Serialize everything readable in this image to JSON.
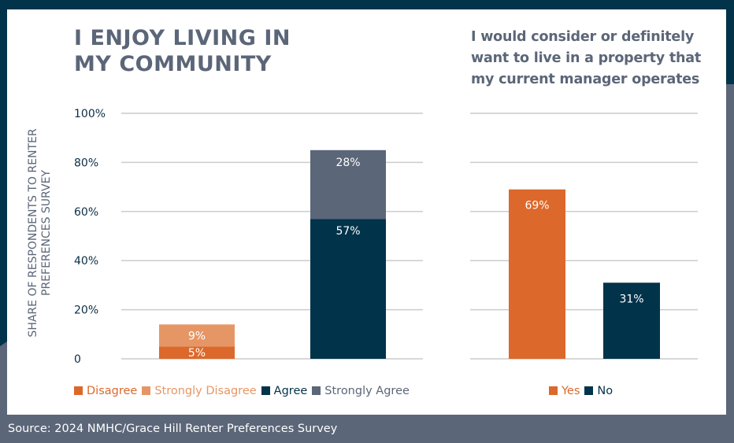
{
  "colors": {
    "navy": "#01334a",
    "slate": "#5b6678",
    "orange": "#dc682b",
    "light_orange": "#e69665",
    "grid": "#cccccc"
  },
  "left": {
    "title": "I ENJOY LIVING IN MY COMMUNITY",
    "title_lines": [
      "I ENJOY LIVING IN",
      "MY COMMUNITY"
    ],
    "ylabel": "SHARE OF RESPONDENTS TO RENTER PREFERENCES SURVEY",
    "legend": [
      {
        "label": "Disagree",
        "color": "#dc682b"
      },
      {
        "label": "Strongly Disagree",
        "color": "#e69665"
      },
      {
        "label": "Agree",
        "color": "#01334a"
      },
      {
        "label": "Strongly Agree",
        "color": "#5b6678"
      }
    ]
  },
  "right": {
    "title_lines": [
      "I would consider or definitely",
      "want to live in a property that",
      "my current manager operates"
    ],
    "legend": [
      {
        "label": "Yes",
        "color": "#dc682b"
      },
      {
        "label": "No",
        "color": "#01334a"
      }
    ]
  },
  "source": "Source: 2024 NMHC/Grace Hill Renter Preferences Survey",
  "chart_data": [
    {
      "type": "bar",
      "stacked": true,
      "title": "I ENJOY LIVING IN MY COMMUNITY",
      "xlabel": "",
      "ylabel": "SHARE OF RESPONDENTS TO RENTER PREFERENCES SURVEY",
      "ylim": [
        0,
        100
      ],
      "yticks": [
        "0",
        "20%",
        "40%",
        "60%",
        "80%",
        "100%"
      ],
      "ytick_values": [
        0,
        20,
        40,
        60,
        80,
        100
      ],
      "grid": true,
      "legend_position": "bottom",
      "categories": [
        "Disagree",
        "Agree"
      ],
      "series": [
        {
          "name": "Disagree",
          "color": "#dc682b",
          "values": [
            5,
            0
          ],
          "labels": [
            "5%",
            ""
          ]
        },
        {
          "name": "Strongly Disagree",
          "color": "#e69665",
          "values": [
            9,
            0
          ],
          "labels": [
            "9%",
            ""
          ]
        },
        {
          "name": "Agree",
          "color": "#01334a",
          "values": [
            0,
            57
          ],
          "labels": [
            "",
            "57%"
          ]
        },
        {
          "name": "Strongly Agree",
          "color": "#5b6678",
          "values": [
            0,
            28
          ],
          "labels": [
            "",
            "28%"
          ]
        }
      ]
    },
    {
      "type": "bar",
      "title": "I would consider or definitely want to live in a property that my current manager operates",
      "xlabel": "",
      "ylabel": "",
      "ylim": [
        0,
        100
      ],
      "grid": true,
      "legend_position": "bottom",
      "categories": [
        "Yes",
        "No"
      ],
      "values": [
        69,
        31
      ],
      "labels": [
        "69%",
        "31%"
      ],
      "colors": [
        "#dc682b",
        "#01334a"
      ]
    }
  ]
}
